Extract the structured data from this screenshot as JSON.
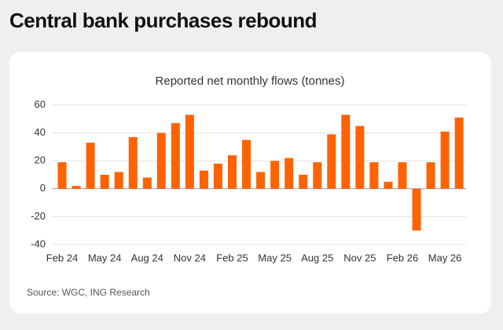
{
  "chart_data": {
    "type": "bar",
    "title": "Central bank purchases rebound",
    "subtitle": "Reported net monthly flows (tonnes)",
    "source": "Source: WGC, ING Research",
    "categories": [
      "Feb 24",
      null,
      null,
      "May 24",
      null,
      null,
      "Aug 24",
      null,
      null,
      "Nov 24",
      null,
      null,
      "Feb 25",
      null,
      null,
      "May 25",
      null,
      null,
      "Aug 25",
      null,
      null,
      "Nov 25",
      null,
      null,
      "Feb 26",
      null,
      null,
      "May 26",
      null
    ],
    "values": [
      19,
      2,
      33,
      10,
      12,
      37,
      8,
      40,
      47,
      53,
      13,
      18,
      24,
      35,
      12,
      20,
      22,
      10,
      19,
      39,
      53,
      45,
      19,
      5,
      19,
      -30,
      19,
      41,
      51
    ],
    "color": "#ff6200",
    "ylim": [
      -40,
      60
    ],
    "yticks": [
      -40,
      -20,
      0,
      20,
      40,
      60
    ],
    "grid": true
  }
}
